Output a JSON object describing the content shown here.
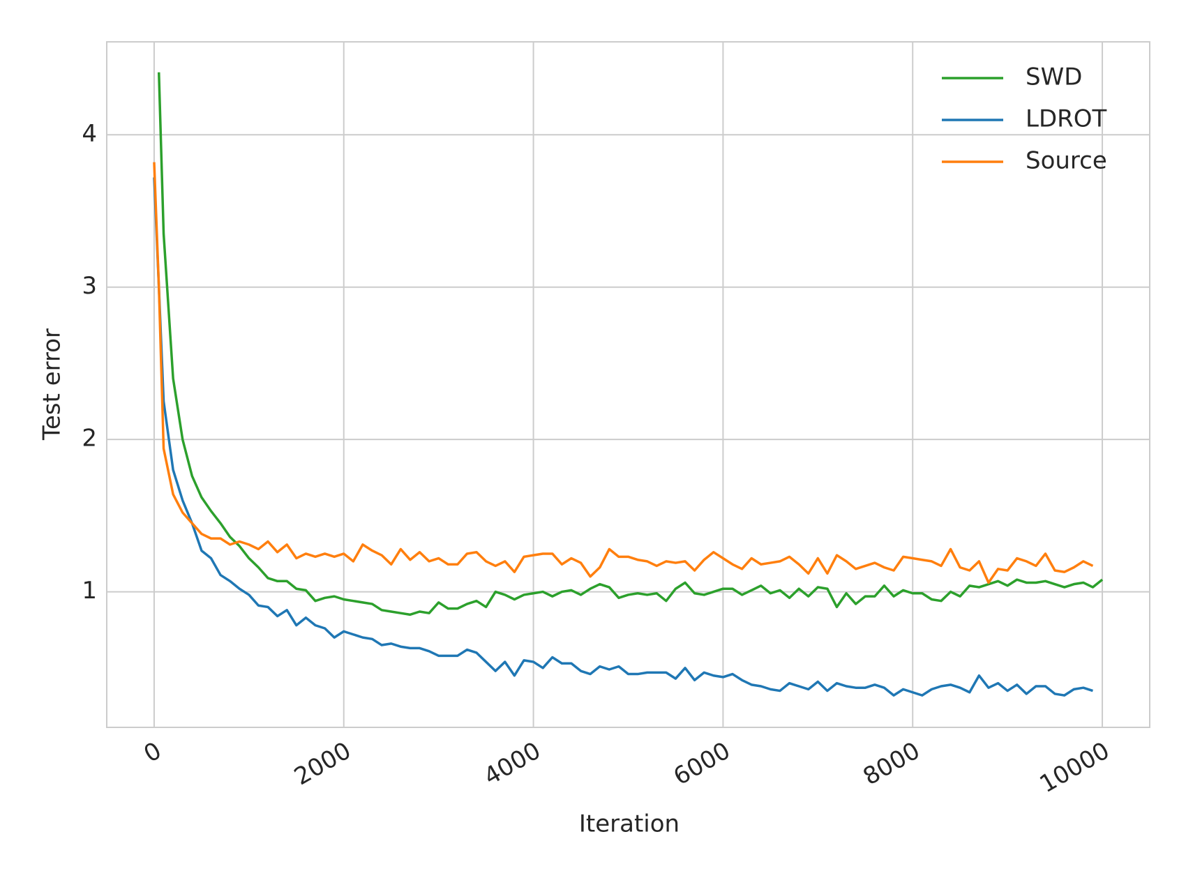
{
  "chart_data": {
    "type": "line",
    "x_label": "Iteration",
    "y_label": "Test error",
    "x": [
      0,
      50,
      100,
      200,
      300,
      400,
      500,
      600,
      700,
      800,
      900,
      1000,
      1100,
      1200,
      1300,
      1400,
      1500,
      1600,
      1700,
      1800,
      1900,
      2000,
      2100,
      2200,
      2300,
      2400,
      2500,
      2600,
      2700,
      2800,
      2900,
      3000,
      3100,
      3200,
      3300,
      3400,
      3500,
      3600,
      3700,
      3800,
      3900,
      4000,
      4100,
      4200,
      4300,
      4400,
      4500,
      4600,
      4700,
      4800,
      4900,
      5000,
      5100,
      5200,
      5300,
      5400,
      5500,
      5600,
      5700,
      5800,
      5900,
      6000,
      6100,
      6200,
      6300,
      6400,
      6500,
      6600,
      6700,
      6800,
      6900,
      7000,
      7100,
      7200,
      7300,
      7400,
      7500,
      7600,
      7700,
      7800,
      7900,
      8000,
      8100,
      8200,
      8300,
      8400,
      8500,
      8600,
      8700,
      8800,
      8900,
      9000,
      9100,
      9200,
      9300,
      9400,
      9500,
      9600,
      9700,
      9800,
      9900,
      10000
    ],
    "series": [
      {
        "name": "SWD",
        "color": "#2ca02c",
        "values": [
          null,
          4.41,
          3.35,
          2.4,
          2.0,
          1.76,
          1.62,
          1.53,
          1.45,
          1.36,
          1.3,
          1.22,
          1.16,
          1.09,
          1.07,
          1.07,
          1.02,
          1.01,
          0.94,
          0.96,
          0.97,
          0.95,
          0.94,
          0.93,
          0.92,
          0.88,
          0.87,
          0.86,
          0.85,
          0.87,
          0.86,
          0.93,
          0.89,
          0.89,
          0.92,
          0.94,
          0.9,
          1.0,
          0.98,
          0.95,
          0.98,
          0.99,
          1.0,
          0.97,
          1.0,
          1.01,
          0.98,
          1.02,
          1.05,
          1.03,
          0.96,
          0.98,
          0.99,
          0.98,
          0.99,
          0.94,
          1.02,
          1.06,
          0.99,
          0.98,
          1.0,
          1.02,
          1.02,
          0.98,
          1.01,
          1.04,
          0.99,
          1.01,
          0.96,
          1.02,
          0.97,
          1.03,
          1.02,
          0.9,
          0.99,
          0.92,
          0.97,
          0.97,
          1.04,
          0.97,
          1.01,
          0.99,
          0.99,
          0.95,
          0.94,
          1.0,
          0.97,
          1.04,
          1.03,
          1.05,
          1.07,
          1.04,
          1.08,
          1.06,
          1.06,
          1.07,
          1.05,
          1.03,
          1.05,
          1.06,
          1.03,
          1.08
        ]
      },
      {
        "name": "LDROT",
        "color": "#1f77b4",
        "values": [
          3.72,
          3.0,
          2.25,
          1.8,
          1.6,
          1.45,
          1.27,
          1.22,
          1.11,
          1.07,
          1.02,
          0.98,
          0.91,
          0.9,
          0.84,
          0.88,
          0.78,
          0.83,
          0.78,
          0.76,
          0.7,
          0.74,
          0.72,
          0.7,
          0.69,
          0.65,
          0.66,
          0.64,
          0.63,
          0.63,
          0.61,
          0.58,
          0.58,
          0.58,
          0.62,
          0.6,
          0.54,
          0.48,
          0.54,
          0.45,
          0.55,
          0.54,
          0.5,
          0.57,
          0.53,
          0.53,
          0.48,
          0.46,
          0.51,
          0.49,
          0.51,
          0.46,
          0.46,
          0.47,
          0.47,
          0.47,
          0.43,
          0.5,
          0.42,
          0.47,
          0.45,
          0.44,
          0.46,
          0.42,
          0.39,
          0.38,
          0.36,
          0.35,
          0.4,
          0.38,
          0.36,
          0.41,
          0.35,
          0.4,
          0.38,
          0.37,
          0.37,
          0.39,
          0.37,
          0.32,
          0.36,
          0.34,
          0.32,
          0.36,
          0.38,
          0.39,
          0.37,
          0.34,
          0.45,
          0.37,
          0.4,
          0.35,
          0.39,
          0.33,
          0.38,
          0.38,
          0.33,
          0.32,
          0.36,
          0.37,
          0.35,
          null
        ]
      },
      {
        "name": "Source",
        "color": "#ff7f0e",
        "values": [
          3.82,
          3.0,
          1.94,
          1.64,
          1.52,
          1.45,
          1.38,
          1.35,
          1.35,
          1.31,
          1.33,
          1.31,
          1.28,
          1.33,
          1.26,
          1.31,
          1.22,
          1.25,
          1.23,
          1.25,
          1.23,
          1.25,
          1.2,
          1.31,
          1.27,
          1.24,
          1.18,
          1.28,
          1.21,
          1.26,
          1.2,
          1.22,
          1.18,
          1.18,
          1.25,
          1.26,
          1.2,
          1.17,
          1.2,
          1.13,
          1.23,
          1.24,
          1.25,
          1.25,
          1.18,
          1.22,
          1.19,
          1.1,
          1.16,
          1.28,
          1.23,
          1.23,
          1.21,
          1.2,
          1.17,
          1.2,
          1.19,
          1.2,
          1.14,
          1.21,
          1.26,
          1.22,
          1.18,
          1.15,
          1.22,
          1.18,
          1.19,
          1.2,
          1.23,
          1.18,
          1.12,
          1.22,
          1.12,
          1.24,
          1.2,
          1.15,
          1.17,
          1.19,
          1.16,
          1.14,
          1.23,
          1.22,
          1.21,
          1.2,
          1.17,
          1.28,
          1.16,
          1.14,
          1.2,
          1.06,
          1.15,
          1.14,
          1.22,
          1.2,
          1.17,
          1.25,
          1.14,
          1.13,
          1.16,
          1.2,
          1.17,
          null
        ]
      }
    ],
    "xlim": [
      -500,
      10500
    ],
    "ylim": [
      0.11,
      4.61
    ],
    "xticks": [
      0,
      2000,
      4000,
      6000,
      8000,
      10000
    ],
    "yticks": [
      1,
      2,
      3,
      4
    ],
    "grid": true,
    "legend": "upper right"
  }
}
